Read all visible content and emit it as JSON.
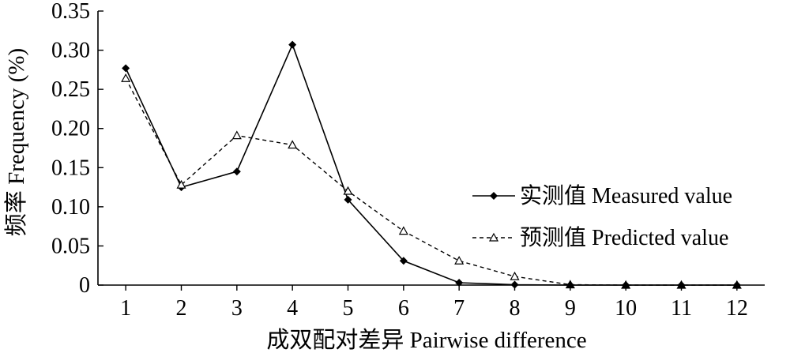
{
  "chart_data": {
    "type": "line",
    "xlabel": "成双配对差异 Pairwise difference",
    "ylabel": "频率 Frequency (%)",
    "x": [
      1,
      2,
      3,
      4,
      5,
      6,
      7,
      8,
      9,
      10,
      11,
      12
    ],
    "y_ticks": [
      "0",
      "0.05",
      "0.10",
      "0.15",
      "0.20",
      "0.25",
      "0.30",
      "0.35"
    ],
    "y_tick_values": [
      0,
      0.05,
      0.1,
      0.15,
      0.2,
      0.25,
      0.3,
      0.35
    ],
    "xlim": [
      0.5,
      12.5
    ],
    "ylim": [
      0,
      0.35
    ],
    "grid": false,
    "legend_position": "right",
    "series": [
      {
        "name": "实测值 Measured value",
        "style": "solid",
        "marker": "diamond",
        "color": "#000000",
        "values": [
          0.277,
          0.125,
          0.145,
          0.307,
          0.109,
          0.031,
          0.003,
          0.0005,
          0,
          0,
          0,
          0
        ]
      },
      {
        "name": "预测值 Predicted value",
        "style": "dashed",
        "marker": "triangle-open",
        "color": "#000000",
        "values": [
          0.264,
          0.128,
          0.191,
          0.179,
          0.12,
          0.069,
          0.031,
          0.011,
          0.0005,
          0,
          0,
          0
        ]
      }
    ]
  }
}
